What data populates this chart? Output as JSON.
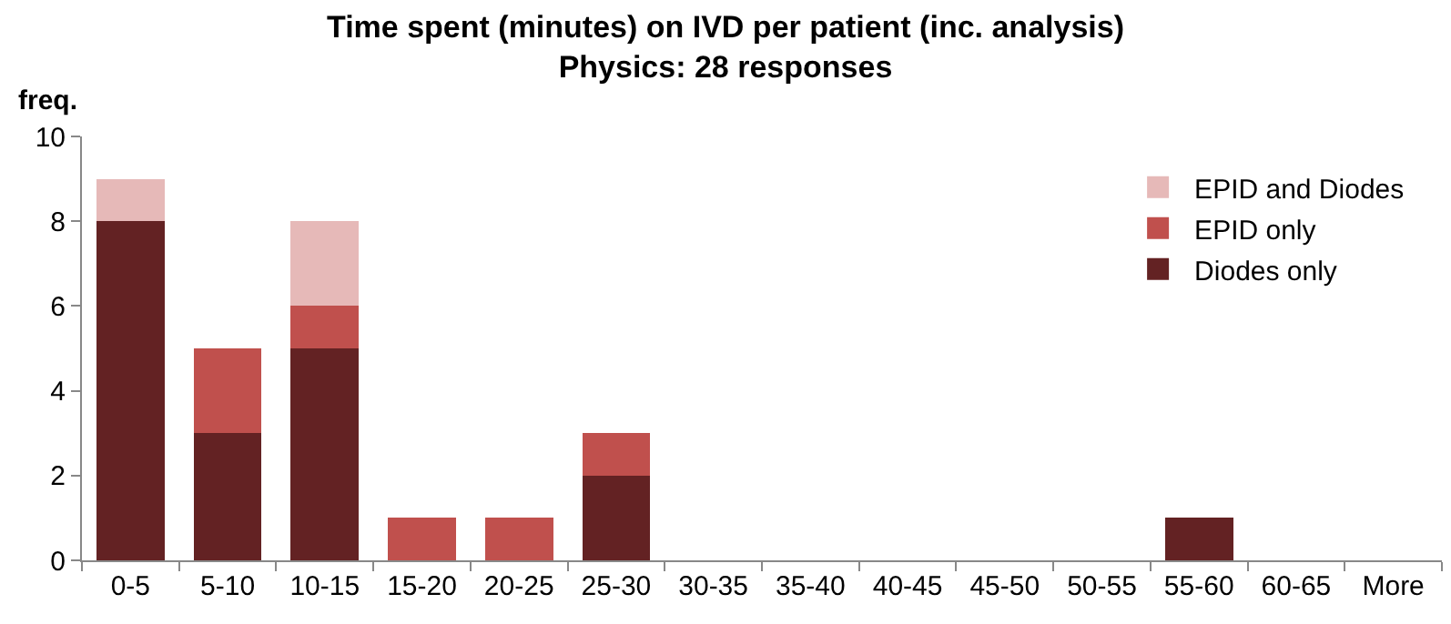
{
  "chart_data": {
    "type": "bar",
    "title": "Time spent (minutes) on IVD per patient (inc. analysis)",
    "subtitle": "Physics: 28 responses",
    "ylabel": "freq.",
    "categories": [
      "0-5",
      "5-10",
      "10-15",
      "15-20",
      "20-25",
      "25-30",
      "30-35",
      "35-40",
      "40-45",
      "45-50",
      "50-55",
      "55-60",
      "60-65",
      "More"
    ],
    "stacked": true,
    "ylim": [
      0,
      10
    ],
    "yticks": [
      0,
      2,
      4,
      6,
      8,
      10
    ],
    "grid": false,
    "legend": "top right",
    "series": [
      {
        "name": "Diodes only",
        "color": "#632223",
        "values": [
          8,
          3,
          5,
          0,
          0,
          2,
          0,
          0,
          0,
          0,
          0,
          1,
          0,
          0
        ]
      },
      {
        "name": "EPID only",
        "color": "#c0504d",
        "values": [
          0,
          2,
          1,
          1,
          1,
          1,
          0,
          0,
          0,
          0,
          0,
          0,
          0,
          0
        ]
      },
      {
        "name": "EPID and Diodes",
        "color": "#e6b9b8",
        "values": [
          1,
          0,
          2,
          0,
          0,
          0,
          0,
          0,
          0,
          0,
          0,
          0,
          0,
          0
        ]
      }
    ]
  }
}
